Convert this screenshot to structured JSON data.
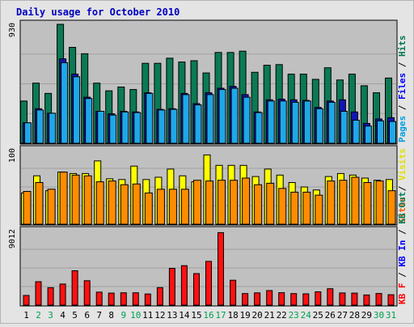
{
  "chart_data": {
    "type": "bar",
    "title": "Daily usage for October 2010",
    "categories": [
      "1",
      "2",
      "3",
      "4",
      "5",
      "6",
      "7",
      "8",
      "9",
      "10",
      "11",
      "12",
      "13",
      "14",
      "15",
      "16",
      "17",
      "18",
      "19",
      "20",
      "21",
      "22",
      "23",
      "24",
      "25",
      "26",
      "27",
      "28",
      "29",
      "30",
      "31"
    ],
    "weekend_days": [
      "2",
      "3",
      "9",
      "10",
      "16",
      "17",
      "23",
      "24",
      "30",
      "31"
    ],
    "panels": [
      {
        "id": "top",
        "ymax_label": "930",
        "ymax": 930,
        "legend": [
          {
            "text": "Pages",
            "color": "#00a0e0"
          },
          {
            "text": " / ",
            "color": "#000000"
          },
          {
            "text": "Files",
            "color": "#0000ff"
          },
          {
            "text": " / ",
            "color": "#000000"
          },
          {
            "text": "Hits",
            "color": "#007850"
          }
        ],
        "series": [
          {
            "name": "Hits",
            "color": "#0a7a55",
            "values": [
              330,
              470,
              390,
              930,
              750,
              700,
              470,
              410,
              440,
              420,
              625,
              625,
              665,
              635,
              645,
              550,
              710,
              710,
              720,
              555,
              610,
              615,
              540,
              540,
              500,
              590,
              495,
              540,
              450,
              395,
              510
            ]
          },
          {
            "name": "Files",
            "color": "#1414b4",
            "values": [
              160,
              270,
              235,
              660,
              540,
              360,
              250,
              230,
              250,
              245,
              395,
              265,
              270,
              390,
              310,
              395,
              430,
              445,
              380,
              245,
              340,
              345,
              340,
              335,
              280,
              330,
              340,
              245,
              155,
              190,
              200
            ]
          },
          {
            "name": "Pages",
            "color": "#1ea8e8",
            "values": [
              160,
              260,
              235,
              630,
              520,
              350,
              250,
              220,
              245,
              240,
              390,
              260,
              265,
              380,
              300,
              380,
              420,
              430,
              360,
              240,
              330,
              330,
              320,
              330,
              270,
              320,
              250,
              180,
              135,
              175,
              170
            ]
          }
        ]
      },
      {
        "id": "middle",
        "ymax_label": "100",
        "ymax": 100,
        "legend": [
          {
            "text": "Sites",
            "color": "#ff6000"
          },
          {
            "text": " / ",
            "color": "#000000"
          },
          {
            "text": "Visits",
            "color": "#e0e000"
          }
        ],
        "series": [
          {
            "name": "Visits",
            "color": "#ffff00",
            "values": [
              42,
              65,
              45,
              70,
              68,
              68,
              85,
              61,
              60,
              78,
              60,
              63,
              74,
              65,
              57,
              93,
              79,
              79,
              79,
              64,
              74,
              66,
              56,
              50,
              46,
              64,
              68,
              66,
              62,
              59,
              60
            ]
          },
          {
            "name": "Sites",
            "color": "#ff8c00",
            "values": [
              44,
              56,
              47,
              70,
              66,
              65,
              57,
              58,
              53,
              54,
              42,
              47,
              47,
              47,
              59,
              58,
              59,
              59,
              62,
              53,
              55,
              48,
              43,
              43,
              39,
              58,
              59,
              63,
              56,
              58,
              45
            ]
          }
        ]
      },
      {
        "id": "bottom",
        "ymax_label": "9012",
        "ymax": 9012,
        "legend": [
          {
            "text": "KB F",
            "color": "#ff0000"
          },
          {
            "text": " / ",
            "color": "#000000"
          },
          {
            "text": "KB In",
            "color": "#0000ff"
          },
          {
            "text": " / ",
            "color": "#000000"
          },
          {
            "text": "KB Out",
            "color": "#008060"
          }
        ],
        "series": [
          {
            "name": "KB F",
            "color": "#ff1010",
            "values": [
              1180,
              2840,
              2120,
              2560,
              4160,
              2960,
              1580,
              1460,
              1500,
              1500,
              1350,
              2130,
              4460,
              4780,
              3820,
              5300,
              8780,
              3020,
              1400,
              1490,
              1760,
              1510,
              1400,
              1370,
              1620,
              1990,
              1480,
              1460,
              1230,
              1410,
              1260
            ]
          }
        ]
      }
    ]
  }
}
